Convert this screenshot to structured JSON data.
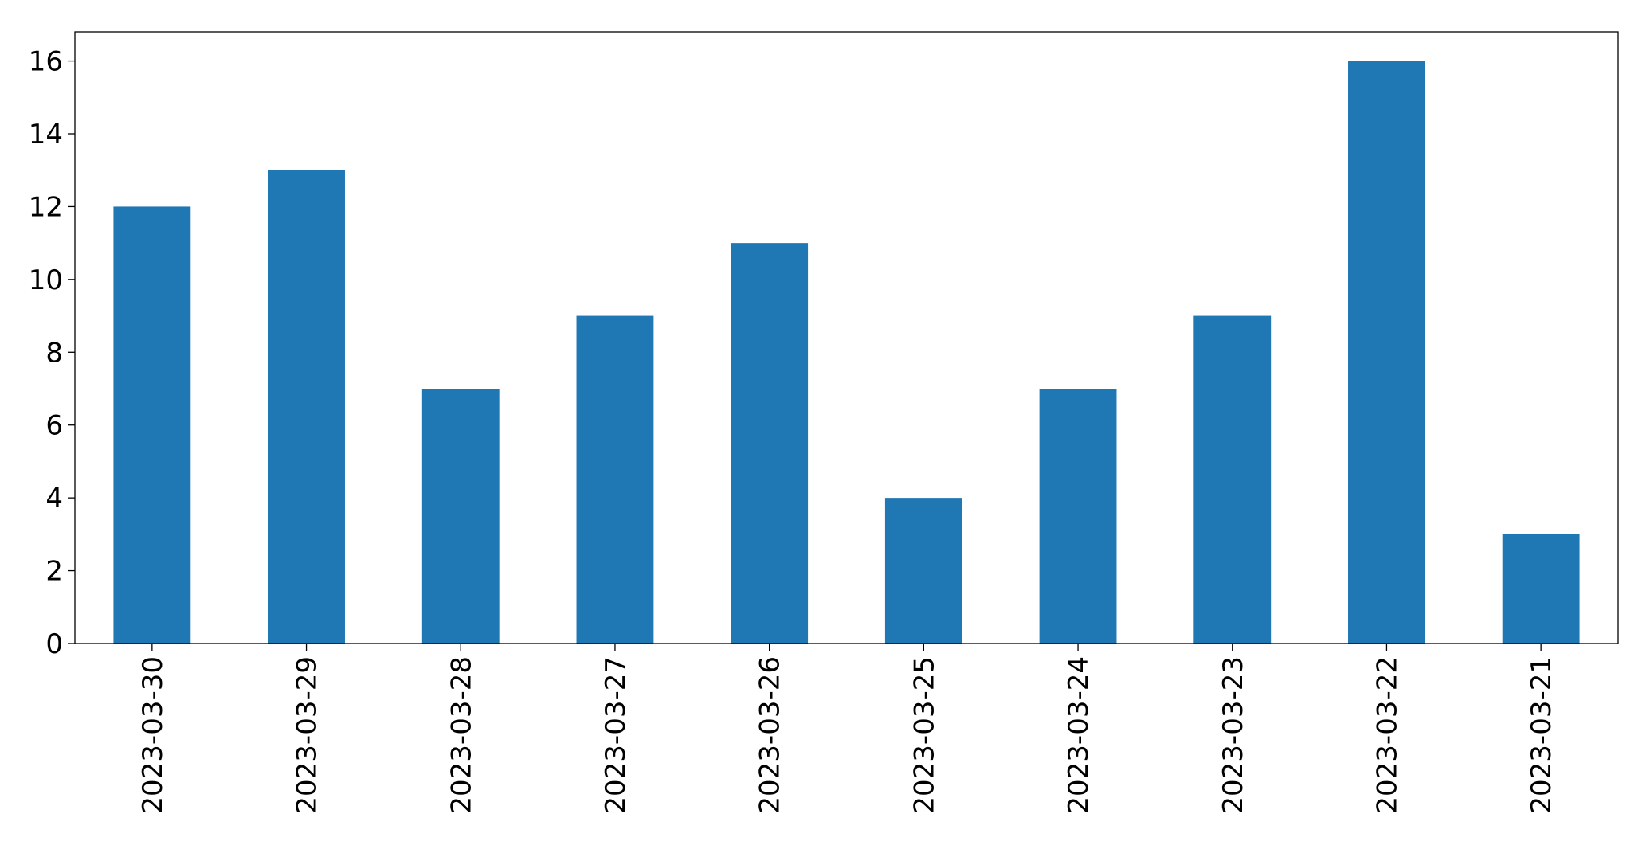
{
  "chart_data": {
    "type": "bar",
    "categories": [
      "2023-03-30",
      "2023-03-29",
      "2023-03-28",
      "2023-03-27",
      "2023-03-26",
      "2023-03-25",
      "2023-03-24",
      "2023-03-23",
      "2023-03-22",
      "2023-03-21"
    ],
    "values": [
      12,
      13,
      7,
      9,
      11,
      4,
      7,
      9,
      16,
      3
    ],
    "color": "#1f77b4",
    "ylim": [
      0,
      16.8
    ],
    "yticks": [
      0,
      2,
      4,
      6,
      8,
      10,
      12,
      14,
      16
    ],
    "grid": false
  }
}
